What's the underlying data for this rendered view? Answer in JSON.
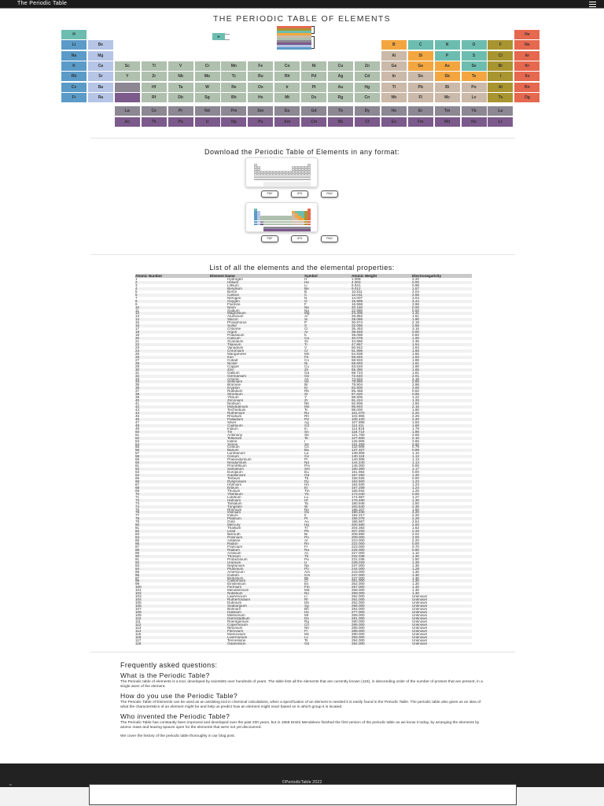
{
  "header": {
    "title": "The Periodic Table",
    "menu_icon": "hamburger-icon"
  },
  "pt_title": "THE PERIODIC TABLE OF ELEMENTS",
  "legend_symbol": "H",
  "colors": {
    "alkali": "#5b9bc8",
    "alkaline": "#b6c5e6",
    "transition": "#afc0ae",
    "post": "#cbb9a9",
    "metalloid": "#f3a640",
    "nonmetal": "#6cbdb0",
    "halogen": "#a99530",
    "noble": "#e5684f",
    "lanth": "#8c8793",
    "actin": "#7c5a8b"
  },
  "legend_stack": [
    "#e5684f",
    "#a99530",
    "#6cbdb0",
    "#f3a640",
    "#cbb9a9",
    "#afc0ae",
    "#8c8793",
    "#7c5a8b",
    "#b6c5e6",
    "#5b9bc8"
  ],
  "pt_rows": [
    [
      [
        "H",
        "nonmetal"
      ],
      null,
      null,
      null,
      null,
      null,
      null,
      null,
      null,
      null,
      null,
      null,
      null,
      null,
      null,
      null,
      null,
      [
        "He",
        "noble"
      ]
    ],
    [
      [
        "Li",
        "alkali"
      ],
      [
        "Be",
        "alkaline"
      ],
      null,
      null,
      null,
      null,
      null,
      null,
      null,
      null,
      null,
      null,
      [
        "B",
        "metalloid"
      ],
      [
        "C",
        "nonmetal"
      ],
      [
        "N",
        "nonmetal"
      ],
      [
        "O",
        "nonmetal"
      ],
      [
        "F",
        "halogen"
      ],
      [
        "Ne",
        "noble"
      ]
    ],
    [
      [
        "Na",
        "alkali"
      ],
      [
        "Mg",
        "alkaline"
      ],
      null,
      null,
      null,
      null,
      null,
      null,
      null,
      null,
      null,
      null,
      [
        "Al",
        "post"
      ],
      [
        "Si",
        "metalloid"
      ],
      [
        "P",
        "nonmetal"
      ],
      [
        "S",
        "nonmetal"
      ],
      [
        "Cl",
        "halogen"
      ],
      [
        "Ar",
        "noble"
      ]
    ],
    [
      [
        "K",
        "alkali"
      ],
      [
        "Ca",
        "alkaline"
      ],
      [
        "Sc",
        "transition"
      ],
      [
        "Ti",
        "transition"
      ],
      [
        "V",
        "transition"
      ],
      [
        "Cr",
        "transition"
      ],
      [
        "Mn",
        "transition"
      ],
      [
        "Fe",
        "transition"
      ],
      [
        "Co",
        "transition"
      ],
      [
        "Ni",
        "transition"
      ],
      [
        "Cu",
        "transition"
      ],
      [
        "Zn",
        "transition"
      ],
      [
        "Ga",
        "post"
      ],
      [
        "Ge",
        "metalloid"
      ],
      [
        "As",
        "metalloid"
      ],
      [
        "Se",
        "nonmetal"
      ],
      [
        "Br",
        "halogen"
      ],
      [
        "Kr",
        "noble"
      ]
    ],
    [
      [
        "Rb",
        "alkali"
      ],
      [
        "Sr",
        "alkaline"
      ],
      [
        "Y",
        "transition"
      ],
      [
        "Zr",
        "transition"
      ],
      [
        "Nb",
        "transition"
      ],
      [
        "Mo",
        "transition"
      ],
      [
        "Tc",
        "transition"
      ],
      [
        "Ru",
        "transition"
      ],
      [
        "Rh",
        "transition"
      ],
      [
        "Pd",
        "transition"
      ],
      [
        "Ag",
        "transition"
      ],
      [
        "Cd",
        "transition"
      ],
      [
        "In",
        "post"
      ],
      [
        "Sn",
        "post"
      ],
      [
        "Sb",
        "metalloid"
      ],
      [
        "Te",
        "metalloid"
      ],
      [
        "I",
        "halogen"
      ],
      [
        "Xe",
        "noble"
      ]
    ],
    [
      [
        "Cs",
        "alkali"
      ],
      [
        "Ba",
        "alkaline"
      ],
      [
        "",
        "lanth"
      ],
      [
        "Hf",
        "transition"
      ],
      [
        "Ta",
        "transition"
      ],
      [
        "W",
        "transition"
      ],
      [
        "Re",
        "transition"
      ],
      [
        "Os",
        "transition"
      ],
      [
        "Ir",
        "transition"
      ],
      [
        "Pt",
        "transition"
      ],
      [
        "Au",
        "transition"
      ],
      [
        "Hg",
        "transition"
      ],
      [
        "Tl",
        "post"
      ],
      [
        "Pb",
        "post"
      ],
      [
        "Bi",
        "post"
      ],
      [
        "Po",
        "post"
      ],
      [
        "At",
        "halogen"
      ],
      [
        "Rn",
        "noble"
      ]
    ],
    [
      [
        "Fr",
        "alkali"
      ],
      [
        "Ra",
        "alkaline"
      ],
      [
        "",
        "actin"
      ],
      [
        "Rf",
        "transition"
      ],
      [
        "Db",
        "transition"
      ],
      [
        "Sg",
        "transition"
      ],
      [
        "Bh",
        "transition"
      ],
      [
        "Hs",
        "transition"
      ],
      [
        "Mt",
        "transition"
      ],
      [
        "Ds",
        "transition"
      ],
      [
        "Rg",
        "transition"
      ],
      [
        "Cn",
        "transition"
      ],
      [
        "Nh",
        "post"
      ],
      [
        "Fl",
        "post"
      ],
      [
        "Mc",
        "post"
      ],
      [
        "Lv",
        "post"
      ],
      [
        "Ts",
        "halogen"
      ],
      [
        "Og",
        "noble"
      ]
    ]
  ],
  "lanthanides": [
    "La",
    "Ce",
    "Pr",
    "Nd",
    "Pm",
    "Sm",
    "Eu",
    "Gd",
    "Tb",
    "Dy",
    "Ho",
    "Er",
    "Tm",
    "Yb",
    "Lu"
  ],
  "actinides": [
    "Ac",
    "Th",
    "Pa",
    "U",
    "Np",
    "Pu",
    "Am",
    "Cm",
    "Bk",
    "Cf",
    "Es",
    "Fm",
    "Md",
    "No",
    "Lr"
  ],
  "download": {
    "heading": "Download the Periodic Table of Elements in any format:",
    "buttons": [
      "PDF",
      "JPG",
      "PNG"
    ]
  },
  "list": {
    "heading": "List of all the elements and the elemental properties:",
    "columns": [
      "Atomic Number",
      "Element Name",
      "Symbol",
      "Atomic Weight",
      "Electronegativity"
    ],
    "rows": [
      [
        1,
        "Hydrogen",
        "H",
        "1.008",
        "2.20"
      ],
      [
        2,
        "Helium",
        "He",
        "4.003",
        "0.00"
      ],
      [
        3,
        "Lithium",
        "Li",
        "6.941",
        "0.98"
      ],
      [
        4,
        "Beryllium",
        "Be",
        "9.012",
        "1.57"
      ],
      [
        5,
        "Boron",
        "B",
        "10.811",
        "2.04"
      ],
      [
        6,
        "Carbon",
        "C",
        "12.011",
        "2.55"
      ],
      [
        7,
        "Nitrogen",
        "N",
        "14.007",
        "3.04"
      ],
      [
        8,
        "Oxygen",
        "O",
        "15.999",
        "3.44"
      ],
      [
        9,
        "Fluorine",
        "F",
        "18.998",
        "3.98"
      ],
      [
        10,
        "Neon",
        "Ne",
        "20.180",
        "0.00"
      ],
      [
        11,
        "Sodium",
        "Na",
        "22.990",
        "0.93"
      ],
      [
        12,
        "Magnesium",
        "Mg",
        "24.305",
        "1.31"
      ],
      [
        13,
        "Aluminum",
        "Al",
        "26.982",
        "1.61"
      ],
      [
        14,
        "Silicon",
        "Si",
        "28.086",
        "1.90"
      ],
      [
        15,
        "Phosphorus",
        "P",
        "30.974",
        "2.19"
      ],
      [
        16,
        "Sulfur",
        "S",
        "32.065",
        "2.58"
      ],
      [
        17,
        "Chlorine",
        "Cl",
        "35.453",
        "3.16"
      ],
      [
        18,
        "Argon",
        "Ar",
        "39.948",
        "0.00"
      ],
      [
        19,
        "Potassium",
        "K",
        "39.098",
        "0.82"
      ],
      [
        20,
        "Calcium",
        "Ca",
        "40.078",
        "1.00"
      ],
      [
        21,
        "Scandium",
        "Sc",
        "44.956",
        "1.36"
      ],
      [
        22,
        "Titanium",
        "Ti",
        "47.867",
        "1.54"
      ],
      [
        23,
        "Vanadium",
        "V",
        "50.942",
        "1.63"
      ],
      [
        24,
        "Chromium",
        "Cr",
        "51.996",
        "1.66"
      ],
      [
        25,
        "Manganese",
        "Mn",
        "54.938",
        "1.55"
      ],
      [
        26,
        "Iron",
        "Fe",
        "55.845",
        "1.83"
      ],
      [
        27,
        "Cobalt",
        "Co",
        "58.933",
        "1.88"
      ],
      [
        28,
        "Nickel",
        "Ni",
        "58.693",
        "1.91"
      ],
      [
        29,
        "Copper",
        "Cu",
        "63.546",
        "1.90"
      ],
      [
        30,
        "Zinc",
        "Zn",
        "65.390",
        "1.65"
      ],
      [
        31,
        "Gallium",
        "Ga",
        "69.723",
        "1.81"
      ],
      [
        32,
        "Germanium",
        "Ge",
        "72.640",
        "2.01"
      ],
      [
        33,
        "Arsenic",
        "As",
        "74.922",
        "2.18"
      ],
      [
        34,
        "Selenium",
        "Se",
        "78.960",
        "2.55"
      ],
      [
        35,
        "Bromine",
        "Br",
        "79.904",
        "2.96"
      ],
      [
        36,
        "Krypton",
        "Kr",
        "83.800",
        "3.00"
      ],
      [
        37,
        "Rubidium",
        "Rb",
        "85.468",
        "0.82"
      ],
      [
        38,
        "Strontium",
        "Sr",
        "87.620",
        "0.95"
      ],
      [
        39,
        "Yttrium",
        "Y",
        "88.906",
        "1.22"
      ],
      [
        40,
        "Zirconium",
        "Zr",
        "91.224",
        "1.33"
      ],
      [
        41,
        "Niobium",
        "Nb",
        "92.906",
        "1.60"
      ],
      [
        42,
        "Molybdenum",
        "Mo",
        "95.940",
        "2.16"
      ],
      [
        43,
        "Technetium",
        "Tc",
        "98.000",
        "1.90"
      ],
      [
        44,
        "Ruthenium",
        "Ru",
        "101.070",
        "2.20"
      ],
      [
        45,
        "Rhodium",
        "Rh",
        "102.906",
        "2.28"
      ],
      [
        46,
        "Palladium",
        "Pd",
        "106.420",
        "2.20"
      ],
      [
        47,
        "Silver",
        "Ag",
        "107.868",
        "1.93"
      ],
      [
        48,
        "Cadmium",
        "Cd",
        "112.411",
        "1.69"
      ],
      [
        49,
        "Indium",
        "In",
        "114.818",
        "1.78"
      ],
      [
        50,
        "Tin",
        "Sn",
        "118.710",
        "1.96"
      ],
      [
        51,
        "Antimony",
        "Sb",
        "121.760",
        "2.05"
      ],
      [
        52,
        "Tellurium",
        "Te",
        "127.600",
        "2.10"
      ],
      [
        53,
        "Iodine",
        "I",
        "126.905",
        "2.66"
      ],
      [
        54,
        "Xenon",
        "Xe",
        "131.293",
        "2.60"
      ],
      [
        55,
        "Cesium",
        "Cs",
        "132.906",
        "0.79"
      ],
      [
        56,
        "Barium",
        "Ba",
        "137.327",
        "0.89"
      ],
      [
        57,
        "Lanthanum",
        "La",
        "138.906",
        "1.10"
      ],
      [
        58,
        "Cerium",
        "Ce",
        "140.116",
        "1.12"
      ],
      [
        59,
        "Praseodymium",
        "Pr",
        "140.908",
        "1.13"
      ],
      [
        60,
        "Neodymium",
        "Nd",
        "144.240",
        "1.14"
      ],
      [
        61,
        "Promethium",
        "Pm",
        "145.000",
        "0.00"
      ],
      [
        62,
        "Samarium",
        "Sm",
        "150.360",
        "1.17"
      ],
      [
        63,
        "Europium",
        "Eu",
        "151.964",
        "0.00"
      ],
      [
        64,
        "Gadolinium",
        "Gd",
        "157.250",
        "1.20"
      ],
      [
        65,
        "Terbium",
        "Tb",
        "158.925",
        "0.00"
      ],
      [
        66,
        "Dysprosium",
        "Dy",
        "162.500",
        "1.22"
      ],
      [
        67,
        "Holmium",
        "Ho",
        "164.930",
        "1.23"
      ],
      [
        68,
        "Erbium",
        "Er",
        "167.259",
        "1.24"
      ],
      [
        69,
        "Thulium",
        "Tm",
        "168.934",
        "1.25"
      ],
      [
        70,
        "Ytterbium",
        "Yb",
        "173.040",
        "0.00"
      ],
      [
        71,
        "Lutetium",
        "Lu",
        "174.967",
        "1.27"
      ],
      [
        72,
        "Hafnium",
        "Hf",
        "178.490",
        "1.30"
      ],
      [
        73,
        "Tantalum",
        "Ta",
        "180.948",
        "1.50"
      ],
      [
        74,
        "Tungsten",
        "W",
        "183.840",
        "2.36"
      ],
      [
        75,
        "Rhenium",
        "Re",
        "186.207",
        "1.90"
      ],
      [
        76,
        "Osmium",
        "Os",
        "190.230",
        "2.20"
      ],
      [
        77,
        "Iridium",
        "Ir",
        "192.217",
        "2.20"
      ],
      [
        78,
        "Platinum",
        "Pt",
        "195.078",
        "2.28"
      ],
      [
        79,
        "Gold",
        "Au",
        "196.967",
        "2.54"
      ],
      [
        80,
        "Mercury",
        "Hg",
        "200.590",
        "2.00"
      ],
      [
        81,
        "Thallium",
        "Tl",
        "204.383",
        "1.62"
      ],
      [
        82,
        "Lead",
        "Pb",
        "207.200",
        "2.33"
      ],
      [
        83,
        "Bismuth",
        "Bi",
        "208.980",
        "2.02"
      ],
      [
        84,
        "Polonium",
        "Po",
        "209.000",
        "2.00"
      ],
      [
        85,
        "Astatine",
        "At",
        "210.000",
        "2.20"
      ],
      [
        86,
        "Radon",
        "Rn",
        "222.000",
        "0.00"
      ],
      [
        87,
        "Francium",
        "Fr",
        "223.000",
        "0.70"
      ],
      [
        88,
        "Radium",
        "Ra",
        "226.000",
        "0.90"
      ],
      [
        89,
        "Actinium",
        "Ac",
        "227.000",
        "1.10"
      ],
      [
        90,
        "Thorium",
        "Th",
        "232.038",
        "1.30"
      ],
      [
        91,
        "Protactinium",
        "Pa",
        "231.036",
        "1.50"
      ],
      [
        92,
        "Uranium",
        "U",
        "238.029",
        "1.38"
      ],
      [
        93,
        "Neptunium",
        "Np",
        "237.000",
        "1.36"
      ],
      [
        94,
        "Plutonium",
        "Pu",
        "244.000",
        "1.28"
      ],
      [
        95,
        "Americium",
        "Am",
        "243.000",
        "1.30"
      ],
      [
        96,
        "Curium",
        "Cm",
        "247.000",
        "1.30"
      ],
      [
        97,
        "Berkelium",
        "Bk",
        "247.000",
        "1.30"
      ],
      [
        98,
        "Californium",
        "Cf",
        "251.000",
        "1.30"
      ],
      [
        99,
        "Einsteinium",
        "Es",
        "252.000",
        "1.30"
      ],
      [
        100,
        "Fermium",
        "Fm",
        "257.000",
        "1.30"
      ],
      [
        101,
        "Mendelevium",
        "Md",
        "258.000",
        "1.30"
      ],
      [
        102,
        "Nobelium",
        "No",
        "259.000",
        "1.30"
      ],
      [
        103,
        "Lawrencium",
        "Lr",
        "262.000",
        "Unknown"
      ],
      [
        104,
        "Rutherfordium",
        "Rf",
        "261.000",
        "Unknown"
      ],
      [
        105,
        "Dubnium",
        "Db",
        "262.000",
        "Unknown"
      ],
      [
        106,
        "Seaborgium",
        "Sg",
        "266.000",
        "Unknown"
      ],
      [
        107,
        "Bohrium",
        "Bh",
        "264.000",
        "Unknown"
      ],
      [
        108,
        "Hassium",
        "Hs",
        "277.000",
        "Unknown"
      ],
      [
        109,
        "Meitnerium",
        "Mt",
        "268.000",
        "Unknown"
      ],
      [
        110,
        "Darmstadtium",
        "Ds",
        "281.000",
        "Unknown"
      ],
      [
        111,
        "Roentgenium",
        "Rg",
        "280.000",
        "Unknown"
      ],
      [
        112,
        "Copernicium",
        "Cn",
        "285.000",
        "Unknown"
      ],
      [
        113,
        "Nihonium",
        "Nh",
        "286.000",
        "Unknown"
      ],
      [
        114,
        "Flerovium",
        "Fl",
        "289.000",
        "Unknown"
      ],
      [
        115,
        "Moscovium",
        "Mc",
        "290.000",
        "Unknown"
      ],
      [
        116,
        "Livermorium",
        "Lv",
        "293.000",
        "Unknown"
      ],
      [
        117,
        "Tennessine",
        "Ts",
        "294.000",
        "Unknown"
      ],
      [
        118,
        "Oganesson",
        "Og",
        "294.000",
        "Unknown"
      ]
    ]
  },
  "faq": {
    "heading": "Frequently asked questions:",
    "q1": "What is the Periodic Table?",
    "a1": "The Periodic table of elements is a tool, developed by scientists over hundreds of years. The table lists all the elements that are currently known (118), in descending order of the number of protons that are present, in a single atom of the element.",
    "q2": "How do you use the Periodic Table?",
    "a2": "The Periodic Table of Elements can be used as an assisting tool in chemical calculations, when a specification of an element is needed it is easily found in the Periodic Table. The periodic table also gives us an idea of what the characteristics of an element might be and help us predict how an element might react based on in which group it is located.",
    "q3": "Who invented the Periodic Table?",
    "a3": "The Periodic Table has constantly been improved and developed over the past 200 years, but in 1869 Dmitri Mendeleev finished the first version of the periodic table as we know it today, by arranging the elements by atomic mass and leaving spaces open for the elements that were not yet discovered.",
    "blog": "We cover the history of the periodic table thoroughly in our blog post."
  },
  "footer": {
    "copyright": "©PeriodicTable 2022"
  }
}
